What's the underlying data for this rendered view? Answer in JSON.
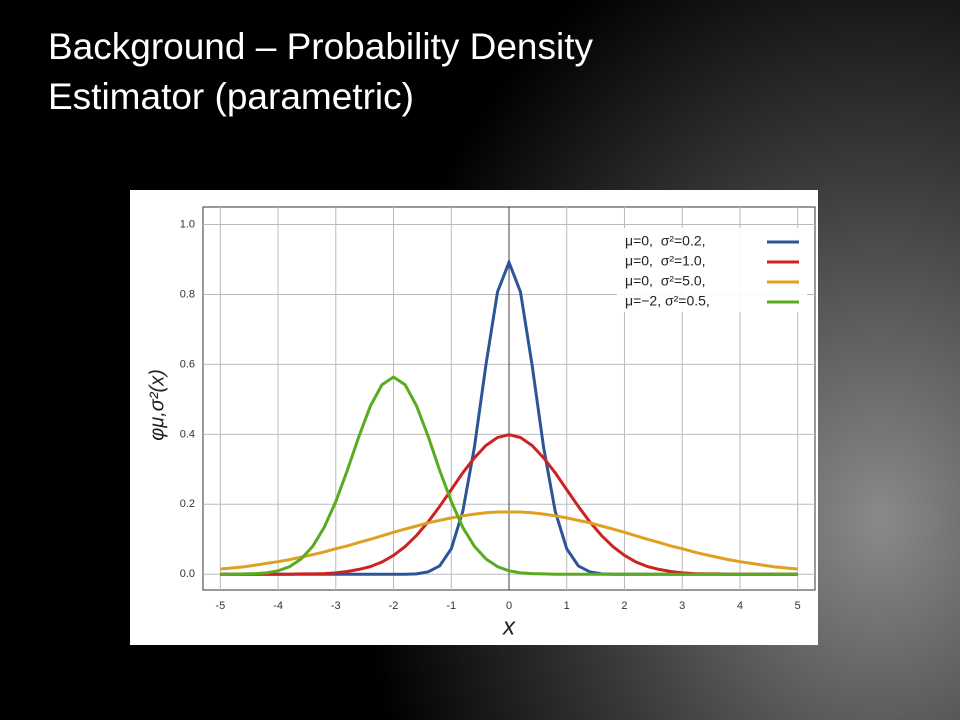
{
  "slide": {
    "title": "Background – Probability Density Estimator (parametric)"
  },
  "chart_data": {
    "type": "line",
    "x_label": "x",
    "y_label": "φμ,σ²(x)",
    "x": [
      -5,
      -4.8,
      -4.6,
      -4.4,
      -4.2,
      -4,
      -3.8,
      -3.6,
      -3.4,
      -3.2,
      -3,
      -2.8,
      -2.6,
      -2.4,
      -2.2,
      -2,
      -1.8,
      -1.6,
      -1.4,
      -1.2,
      -1,
      -0.8,
      -0.6,
      -0.4,
      -0.2,
      0,
      0.2,
      0.4,
      0.6,
      0.8,
      1,
      1.2,
      1.4,
      1.6,
      1.8,
      2,
      2.2,
      2.4,
      2.6,
      2.8,
      3,
      3.2,
      3.4,
      3.6,
      3.8,
      4,
      4.2,
      4.4,
      4.6,
      4.8,
      5
    ],
    "series": [
      {
        "name": "μ=0,  σ²=0.2,",
        "color": "#2b5597",
        "values": [
          0,
          0,
          0,
          0,
          0,
          0,
          0,
          0,
          0,
          0,
          0,
          0,
          0,
          0,
          0,
          0,
          0,
          0.001,
          0.007,
          0.024,
          0.073,
          0.18,
          0.363,
          0.598,
          0.807,
          0.892,
          0.807,
          0.598,
          0.363,
          0.18,
          0.073,
          0.024,
          0.007,
          0.001,
          0,
          0,
          0,
          0,
          0,
          0,
          0,
          0,
          0,
          0,
          0,
          0,
          0,
          0,
          0,
          0,
          0
        ]
      },
      {
        "name": "μ=0,  σ²=1.0,",
        "color": "#cc2222",
        "values": [
          0,
          0,
          0,
          0,
          0,
          0,
          0,
          0.001,
          0.001,
          0.002,
          0.004,
          0.008,
          0.014,
          0.022,
          0.035,
          0.054,
          0.079,
          0.111,
          0.15,
          0.194,
          0.242,
          0.29,
          0.333,
          0.368,
          0.391,
          0.399,
          0.391,
          0.368,
          0.333,
          0.29,
          0.242,
          0.194,
          0.15,
          0.111,
          0.079,
          0.054,
          0.035,
          0.022,
          0.014,
          0.008,
          0.004,
          0.002,
          0.001,
          0.001,
          0,
          0,
          0,
          0,
          0,
          0,
          0
        ]
      },
      {
        "name": "μ=0,  σ²=5.0,",
        "color": "#dfa020",
        "values": [
          0.015,
          0.018,
          0.021,
          0.026,
          0.031,
          0.036,
          0.042,
          0.049,
          0.056,
          0.064,
          0.073,
          0.081,
          0.091,
          0.1,
          0.11,
          0.12,
          0.129,
          0.138,
          0.147,
          0.154,
          0.161,
          0.167,
          0.172,
          0.176,
          0.178,
          0.178,
          0.178,
          0.176,
          0.172,
          0.167,
          0.161,
          0.154,
          0.147,
          0.138,
          0.129,
          0.12,
          0.11,
          0.1,
          0.091,
          0.081,
          0.073,
          0.064,
          0.056,
          0.049,
          0.042,
          0.036,
          0.031,
          0.026,
          0.021,
          0.018,
          0.015
        ]
      },
      {
        "name": "μ=−2, σ²=0.5,",
        "color": "#5aab1e",
        "values": [
          0,
          0,
          0.001,
          0.002,
          0.004,
          0.01,
          0.022,
          0.044,
          0.08,
          0.134,
          0.208,
          0.297,
          0.394,
          0.481,
          0.542,
          0.564,
          0.542,
          0.481,
          0.394,
          0.297,
          0.208,
          0.134,
          0.08,
          0.044,
          0.022,
          0.01,
          0.004,
          0.002,
          0.001,
          0,
          0,
          0,
          0,
          0,
          0,
          0,
          0,
          0,
          0,
          0,
          0,
          0,
          0,
          0,
          0,
          0,
          0,
          0,
          0,
          0,
          0
        ]
      }
    ],
    "xlim": [
      -5.3,
      5.3
    ],
    "ylim": [
      -0.045,
      1.05
    ],
    "xticks": [
      -5,
      -4,
      -3,
      -2,
      -1,
      0,
      1,
      2,
      3,
      4,
      5
    ],
    "yticks": [
      {
        "value": 0,
        "label": "0.0"
      },
      {
        "value": 0.2,
        "label": "0.2"
      },
      {
        "value": 0.4,
        "label": "0.4"
      },
      {
        "value": 0.6,
        "label": "0.6"
      },
      {
        "value": 0.8,
        "label": "0.8"
      },
      {
        "value": 1,
        "label": "1.0"
      }
    ],
    "grid": true,
    "legend": "upper right"
  }
}
